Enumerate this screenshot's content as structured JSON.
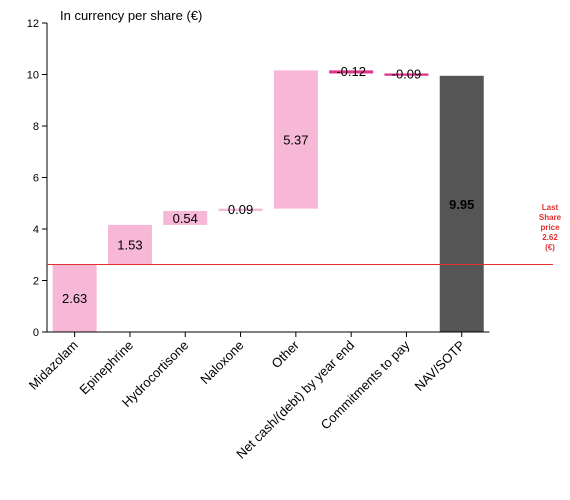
{
  "chart_data": {
    "type": "bar",
    "subtype": "waterfall",
    "title": "In currency per share (€)",
    "xlabel": "",
    "ylabel": "",
    "ylim": [
      0,
      12
    ],
    "yticks": [
      0,
      2,
      4,
      6,
      8,
      10,
      12
    ],
    "grid": false,
    "categories": [
      "Midazolam",
      "Epinephrine",
      "Hydrocortisone",
      "Naloxone",
      "Other",
      "Net cash/(debt) by year end",
      "Commitments to pay",
      "NAV/SOTP"
    ],
    "values": [
      2.63,
      1.53,
      0.54,
      0.09,
      5.37,
      -0.12,
      -0.09,
      9.95
    ],
    "value_labels": [
      "2.63",
      "1.53",
      "0.54",
      "0.09",
      "5.37",
      "-0.12",
      "-0.09",
      "9.95"
    ],
    "total_index": 7,
    "reference_line": {
      "value": 2.62,
      "label_lines": [
        "Last",
        "Share",
        "price",
        "2.62",
        "(€)"
      ]
    },
    "colors": {
      "positive": "#f7b8d8",
      "negative": "#e0338a",
      "total": "#555555",
      "total_label": "#ffffff",
      "reference": "#e03030",
      "axis": "#000000"
    }
  }
}
